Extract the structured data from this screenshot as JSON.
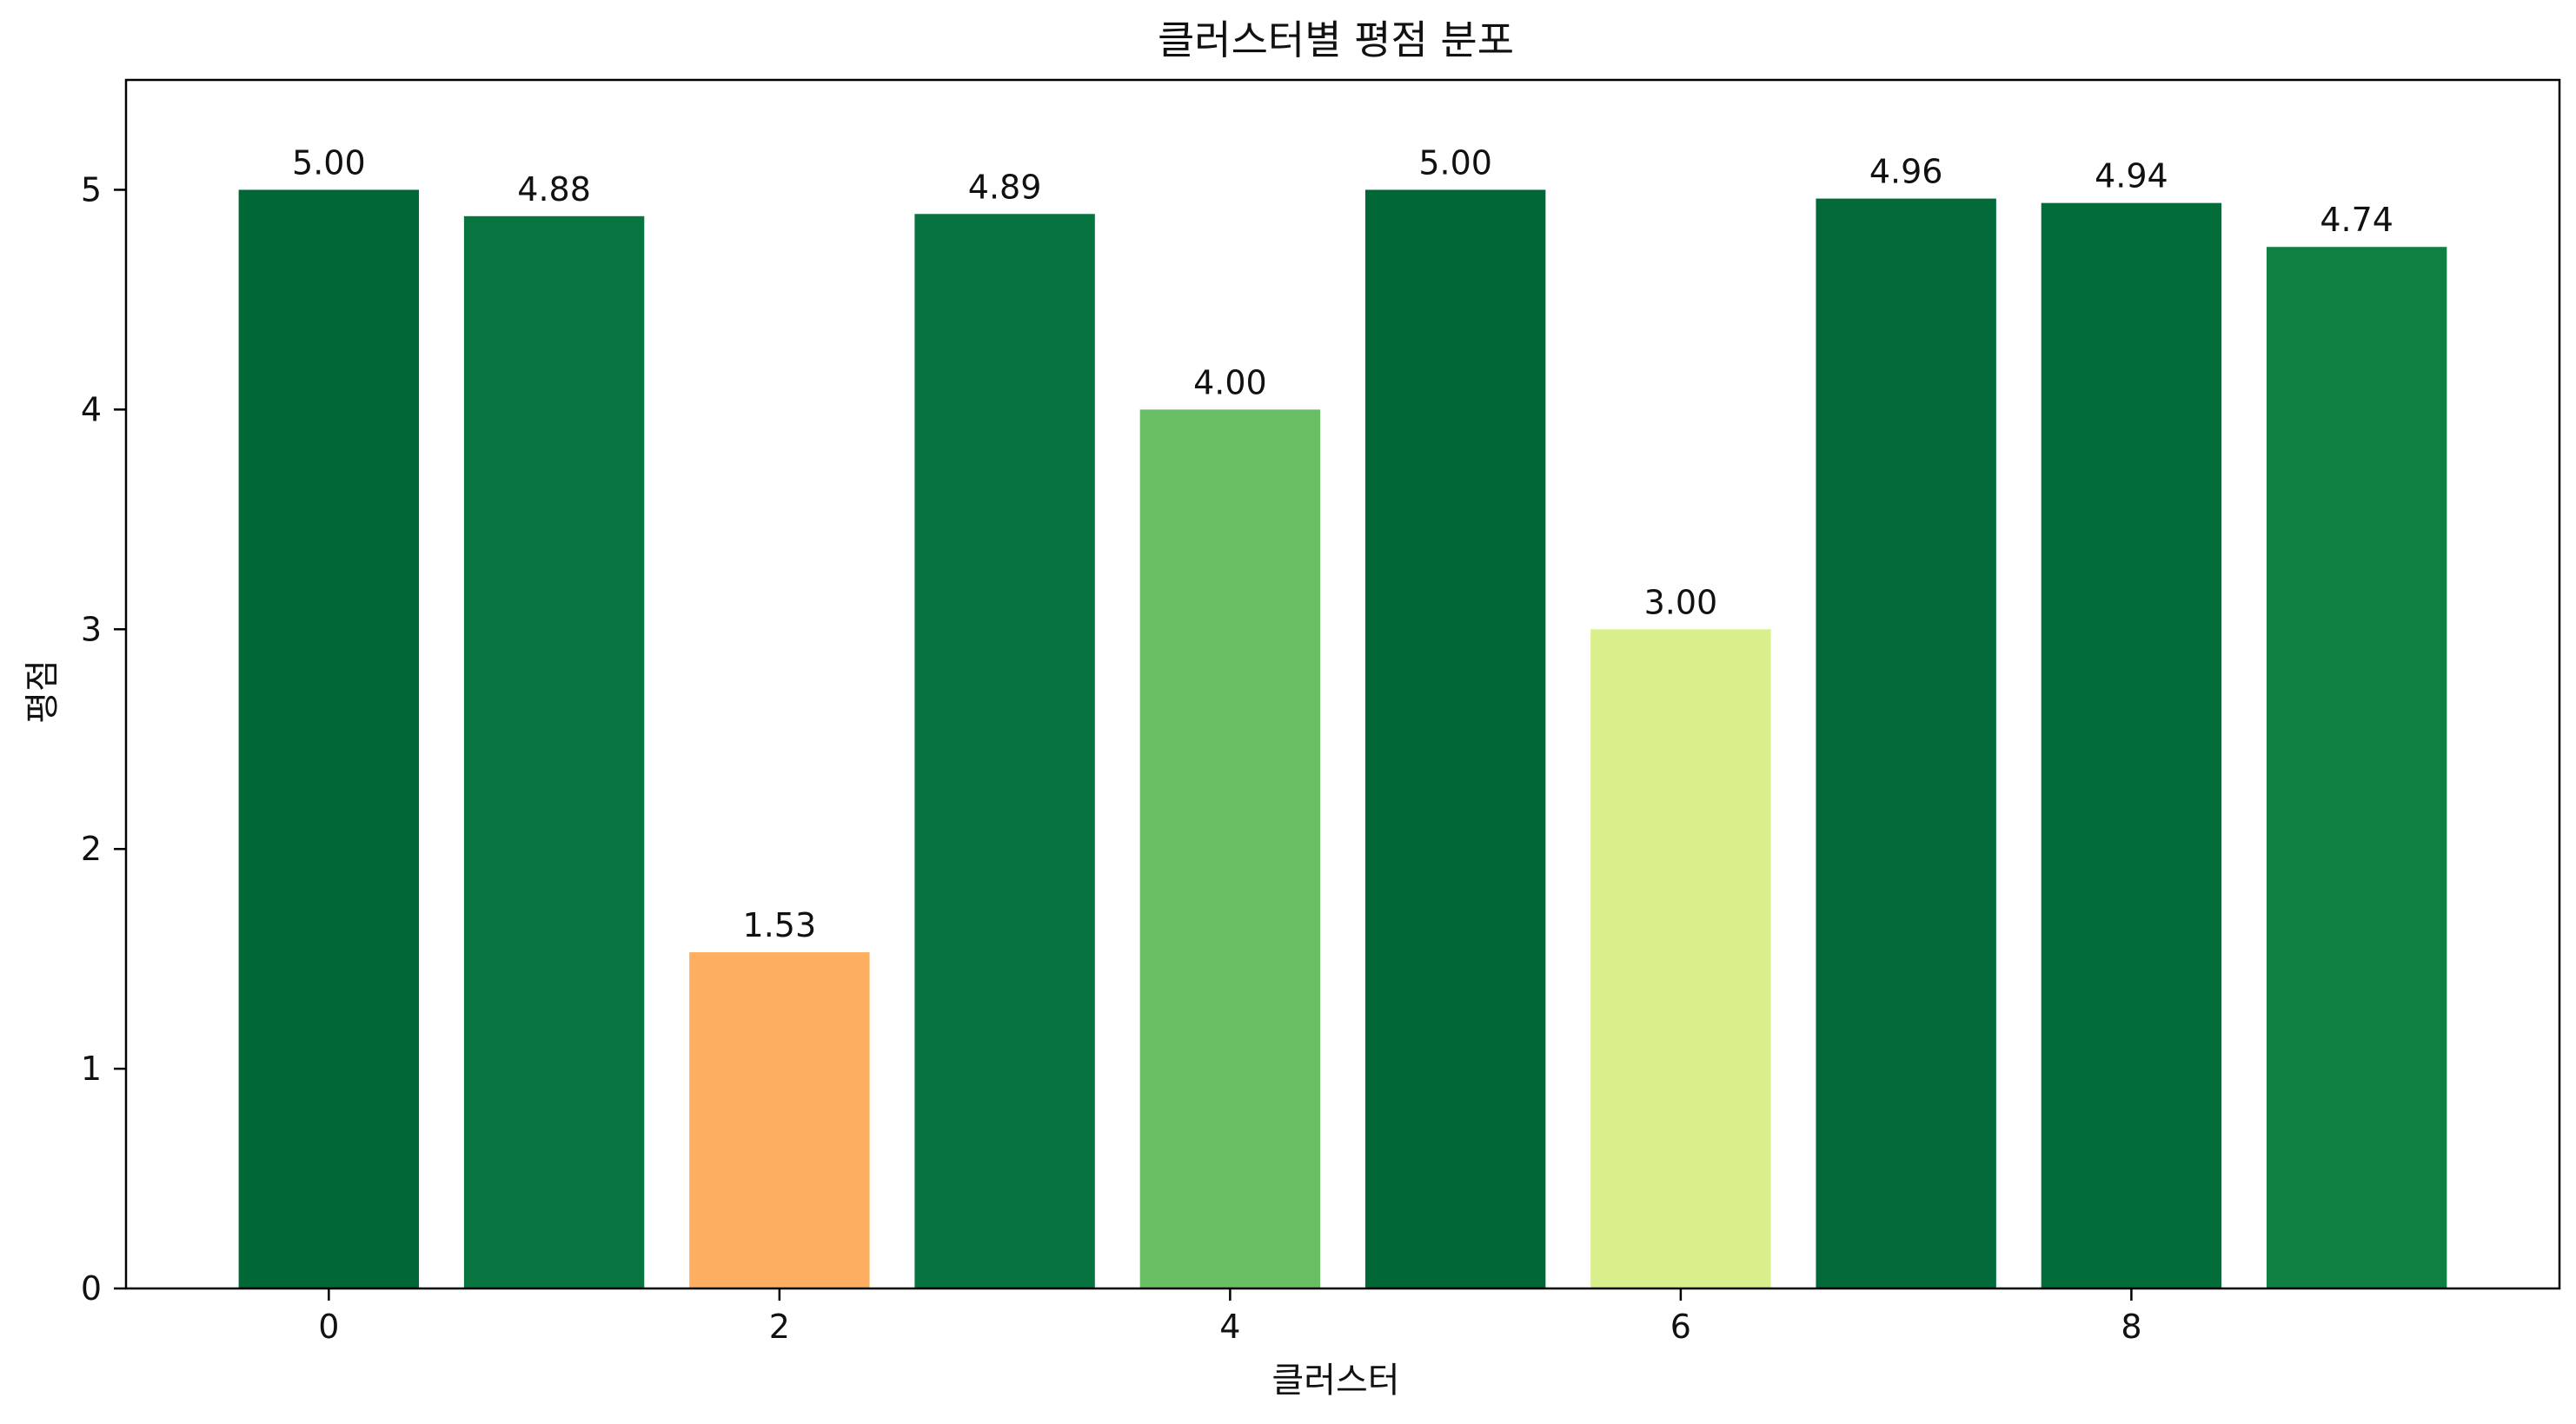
{
  "chart_data": {
    "type": "bar",
    "title": "클러스터별 평점 분포",
    "xlabel": "클러스터",
    "ylabel": "평점",
    "categories": [
      0,
      1,
      2,
      3,
      4,
      5,
      6,
      7,
      8,
      9
    ],
    "values": [
      5.0,
      4.88,
      1.53,
      4.89,
      4.0,
      5.0,
      3.0,
      4.96,
      4.94,
      4.74
    ],
    "value_labels": [
      "5.00",
      "4.88",
      "1.53",
      "4.89",
      "4.00",
      "5.00",
      "3.00",
      "4.96",
      "4.94",
      "4.74"
    ],
    "bar_colors": [
      "#006837",
      "#087540",
      "#fdae61",
      "#077340",
      "#6abe64",
      "#006837",
      "#d9ef8b",
      "#016a38",
      "#036d39",
      "#108042"
    ],
    "x_ticks": [
      0,
      2,
      4,
      6,
      8
    ],
    "x_tick_labels": [
      "0",
      "2",
      "4",
      "6",
      "8"
    ],
    "xlim": [
      -0.9,
      9.9
    ],
    "y_ticks": [
      0,
      1,
      2,
      3,
      4,
      5
    ],
    "y_tick_labels": [
      "0",
      "1",
      "2",
      "3",
      "4",
      "5"
    ],
    "ylim": [
      0,
      5.5
    ],
    "grid": false,
    "legend": "none"
  }
}
